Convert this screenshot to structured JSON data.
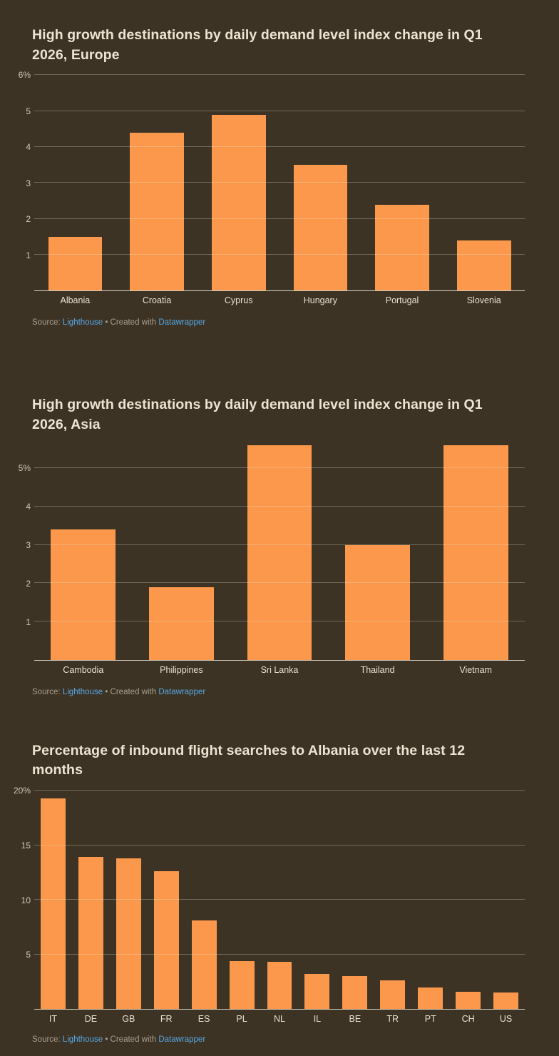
{
  "theme": {
    "background": "#3d3324",
    "bar_color": "#fb984b",
    "link_color": "#55a8e6",
    "grid_color": "rgba(236,228,211,0.30)",
    "axis_color": "rgba(236,228,211,0.85)",
    "title_color": "#ece4d3",
    "tick_color": "#cfc7b6",
    "label_color": "#e8e0d0",
    "source_color": "#a89f8f"
  },
  "charts": [
    {
      "title": "High growth destinations by daily demand level index change in Q1 2026, Europe",
      "source": {
        "prefix": "Source:",
        "name": "Lighthouse",
        "middle": "• Created with",
        "tool": "Datawrapper"
      },
      "chart_data": {
        "type": "bar",
        "categories": [
          "Albania",
          "Croatia",
          "Cyprus",
          "Hungary",
          "Portugal",
          "Slovenia"
        ],
        "values": [
          1.5,
          4.4,
          4.9,
          3.5,
          2.4,
          1.4
        ],
        "title": "High growth destinations by daily demand level index change in Q1 2026, Europe",
        "xlabel": "",
        "ylabel": "",
        "ylim": [
          0,
          6
        ],
        "yticks": [
          {
            "value": 6,
            "label": "6%"
          },
          {
            "value": 5,
            "label": "5"
          },
          {
            "value": 4,
            "label": "4"
          },
          {
            "value": 3,
            "label": "3"
          },
          {
            "value": 2,
            "label": "2"
          },
          {
            "value": 1,
            "label": "1"
          }
        ],
        "grid": true,
        "legend": false
      }
    },
    {
      "title": "High growth destinations by daily demand level index change in Q1 2026, Asia",
      "source": {
        "prefix": "Source:",
        "name": "Lighthouse",
        "middle": "• Created with",
        "tool": "Datawrapper"
      },
      "chart_data": {
        "type": "bar",
        "categories": [
          "Cambodia",
          "Philippines",
          "Sri Lanka",
          "Thailand",
          "Vietnam"
        ],
        "values": [
          3.4,
          1.9,
          5.6,
          3.0,
          5.6
        ],
        "title": "High growth destinations by daily demand level index change in Q1 2026, Asia",
        "xlabel": "",
        "ylabel": "",
        "ylim": [
          0,
          5.6
        ],
        "yticks": [
          {
            "value": 5,
            "label": "5%"
          },
          {
            "value": 4,
            "label": "4"
          },
          {
            "value": 3,
            "label": "3"
          },
          {
            "value": 2,
            "label": "2"
          },
          {
            "value": 1,
            "label": "1"
          }
        ],
        "grid": true,
        "legend": false
      }
    },
    {
      "title": "Percentage of inbound flight searches to Albania over the last 12 months",
      "source": {
        "prefix": "Source:",
        "name": "Lighthouse",
        "middle": "• Created with",
        "tool": "Datawrapper"
      },
      "chart_data": {
        "type": "bar",
        "categories": [
          "IT",
          "DE",
          "GB",
          "FR",
          "ES",
          "PL",
          "NL",
          "IL",
          "BE",
          "TR",
          "PT",
          "CH",
          "US"
        ],
        "values": [
          19.3,
          13.9,
          13.8,
          12.6,
          8.1,
          4.4,
          4.3,
          3.2,
          3.0,
          2.6,
          2.0,
          1.6,
          1.5
        ],
        "title": "Percentage of inbound flight searches to Albania over the last 12 months",
        "xlabel": "",
        "ylabel": "",
        "ylim": [
          0,
          20
        ],
        "yticks": [
          {
            "value": 20,
            "label": "20%"
          },
          {
            "value": 15,
            "label": "15"
          },
          {
            "value": 10,
            "label": "10"
          },
          {
            "value": 5,
            "label": "5"
          }
        ],
        "grid": true,
        "legend": false
      }
    }
  ]
}
